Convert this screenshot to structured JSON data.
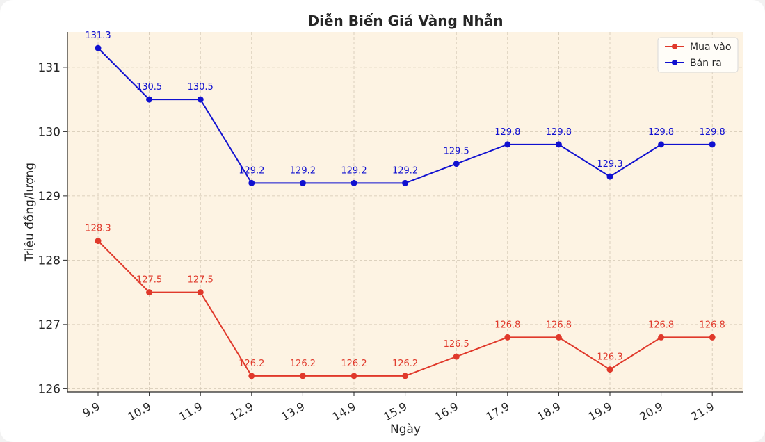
{
  "chart_data": {
    "type": "line",
    "title": "Diễn Biến Giá Vàng Nhẫn",
    "xlabel": "Ngày",
    "ylabel": "Triệu đồng/lượng",
    "categories": [
      "9.9",
      "10.9",
      "11.9",
      "12.9",
      "13.9",
      "14.9",
      "15.9",
      "16.9",
      "17.9",
      "18.9",
      "19.9",
      "20.9",
      "21.9"
    ],
    "ylim": [
      125.95,
      131.55
    ],
    "yticks": [
      126,
      127,
      128,
      129,
      130,
      131
    ],
    "grid": true,
    "legend_position": "top-right",
    "background_color": "#fdf3e3",
    "series": [
      {
        "name": "Mua vào",
        "color": "#e0392b",
        "values": [
          128.3,
          127.5,
          127.5,
          126.2,
          126.2,
          126.2,
          126.2,
          126.5,
          126.8,
          126.8,
          126.3,
          126.8,
          126.8
        ],
        "labels": [
          "128.3",
          "127.5",
          "127.5",
          "126.2",
          "126.2",
          "126.2",
          "126.2",
          "126.5",
          "126.8",
          "126.8",
          "126.3",
          "126.8",
          "126.8"
        ]
      },
      {
        "name": "Bán ra",
        "color": "#1010d0",
        "values": [
          131.3,
          130.5,
          130.5,
          129.2,
          129.2,
          129.2,
          129.2,
          129.5,
          129.8,
          129.8,
          129.3,
          129.8,
          129.8
        ],
        "labels": [
          "131.3",
          "130.5",
          "130.5",
          "129.2",
          "129.2",
          "129.2",
          "129.2",
          "129.5",
          "129.8",
          "129.8",
          "129.3",
          "129.8",
          "129.8"
        ]
      }
    ]
  }
}
